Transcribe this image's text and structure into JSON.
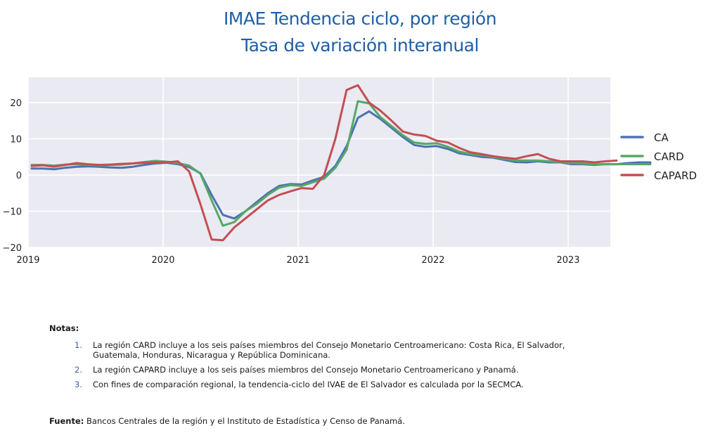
{
  "header": {
    "title": "IMAE Tendencia ciclo, por región",
    "subtitle": "Tasa de variación interanual"
  },
  "chart_data": {
    "type": "line",
    "title": "IMAE Tendencia ciclo, por región",
    "subtitle": "Tasa de variación interanual",
    "xlabel": "",
    "ylabel": "",
    "x_start": "2019-01",
    "x_ticks": [
      "2019",
      "2020",
      "2021",
      "2022",
      "2023"
    ],
    "ylim": [
      -20,
      27
    ],
    "y_ticks": [
      20,
      10,
      0,
      -10,
      -20
    ],
    "grid": true,
    "legend_position": "right",
    "series": [
      {
        "name": "CA",
        "color": "#4c72b0",
        "values": [
          1.8,
          1.8,
          1.6,
          2.0,
          2.3,
          2.4,
          2.3,
          2.1,
          2.0,
          2.3,
          2.8,
          3.2,
          3.4,
          3.0,
          2.2,
          0.5,
          -5.5,
          -11.0,
          -12.0,
          -10.0,
          -7.5,
          -5.0,
          -3.0,
          -2.5,
          -2.6,
          -1.5,
          -0.5,
          2.5,
          8.0,
          15.8,
          17.6,
          15.5,
          13.0,
          10.5,
          8.3,
          7.8,
          8.0,
          7.2,
          6.0,
          5.5,
          5.0,
          4.8,
          4.2,
          3.6,
          3.5,
          3.8,
          3.5,
          3.5,
          3.0,
          3.0,
          2.8,
          3.0,
          3.0,
          3.3,
          3.5,
          3.5
        ]
      },
      {
        "name": "CARD",
        "color": "#55a868",
        "values": [
          2.8,
          2.8,
          2.6,
          2.9,
          3.0,
          2.8,
          2.7,
          2.8,
          2.9,
          3.2,
          3.6,
          3.9,
          3.7,
          3.3,
          2.6,
          0.4,
          -7.0,
          -14.0,
          -13.0,
          -10.0,
          -8.0,
          -5.5,
          -3.5,
          -2.8,
          -3.0,
          -2.0,
          -1.0,
          2.0,
          7.0,
          20.4,
          19.8,
          16.0,
          13.5,
          11.0,
          9.0,
          8.6,
          8.8,
          7.8,
          6.5,
          5.8,
          5.5,
          5.0,
          4.5,
          4.0,
          4.0,
          4.0,
          3.8,
          3.6,
          3.3,
          3.2,
          3.0,
          3.0,
          3.0,
          3.0,
          3.0,
          3.0
        ]
      },
      {
        "name": "CAPARD",
        "color": "#c44e52",
        "values": [
          2.5,
          2.7,
          2.3,
          2.8,
          3.3,
          3.0,
          2.8,
          2.9,
          3.1,
          3.2,
          3.4,
          3.5,
          3.5,
          3.8,
          1.0,
          -8.0,
          -17.8,
          -18.0,
          -14.5,
          -12.0,
          -9.5,
          -7.0,
          -5.5,
          -4.5,
          -3.6,
          -3.8,
          0.0,
          10.0,
          23.5,
          24.8,
          20.0,
          17.8,
          15.0,
          12.0,
          11.2,
          10.8,
          9.5,
          9.0,
          7.5,
          6.3,
          5.8,
          5.2,
          4.8,
          4.5,
          5.2,
          5.8,
          4.5,
          3.8,
          3.8,
          3.8,
          3.5,
          3.8,
          4.0
        ]
      }
    ]
  },
  "notes": {
    "heading": "Notas:",
    "items": [
      {
        "num": "1.",
        "text": "La región CARD incluye a los seis países miembros del Consejo Monetario Centroamericano: Costa Rica, El Salvador, Guatemala, Honduras, Nicaragua y República Dominicana."
      },
      {
        "num": "2.",
        "text": "La región CAPARD incluye a los seis países miembros del Consejo Monetario Centroamericano y Panamá."
      },
      {
        "num": "3.",
        "text": "Con fines de comparación regional, la tendencia-ciclo del IVAE de El Salvador es calculada por la SECMCA."
      }
    ]
  },
  "source": {
    "label": "Fuente:",
    "text": "Bancos Centrales de la región y el Instituto de Estadística y Censo de Panamá."
  }
}
